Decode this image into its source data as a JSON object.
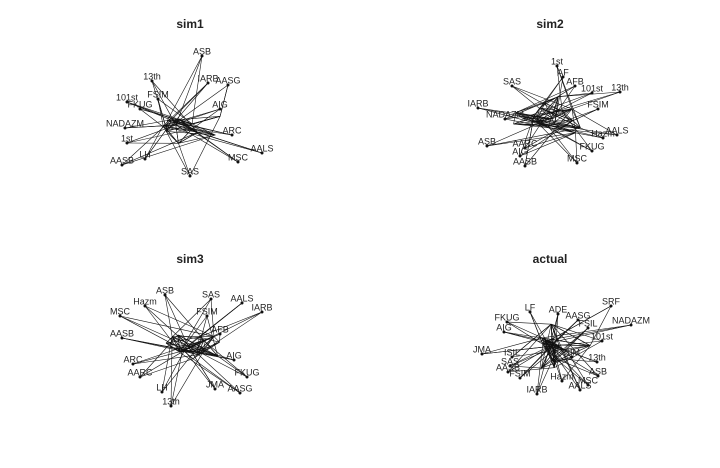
{
  "panels": [
    {
      "title": "sim1",
      "nodes": [
        "ASB",
        "13th",
        "IARB",
        "AASG",
        "101st",
        "FSIM",
        "AIG",
        "FKUG",
        "NADAZM",
        "1st",
        "AASB",
        "LH",
        "ARC",
        "MSC",
        "AALS",
        "SAS"
      ]
    },
    {
      "title": "sim2",
      "nodes": [
        "1st",
        "AF",
        "SAS",
        "AFB",
        "101st",
        "13th",
        "IARB",
        "NADAZM",
        "FSIM",
        "Hazm",
        "AALS",
        "ASB",
        "AARC",
        "AIG",
        "FKUG",
        "AASB",
        "MSC"
      ]
    },
    {
      "title": "sim3",
      "nodes": [
        "ASB",
        "SAS",
        "AALS",
        "IARB",
        "Hazm",
        "MSC",
        "FSIM",
        "AASB",
        "AFB",
        "AIG",
        "ARC",
        "AARC",
        "FKUG",
        "AASG",
        "JMA",
        "LH",
        "13th"
      ]
    },
    {
      "title": "actual",
      "nodes": [
        "SRF",
        "NADAZM",
        "101st",
        "LF",
        "ADE",
        "AASG",
        "FSIL",
        "FKUG",
        "AIG",
        "JMA",
        "ISIL",
        "SAS",
        "AASB",
        "FSIM",
        "SIM",
        "13th",
        "ASB",
        "MSC",
        "AALS",
        "Hazm",
        "IARB"
      ]
    }
  ]
}
